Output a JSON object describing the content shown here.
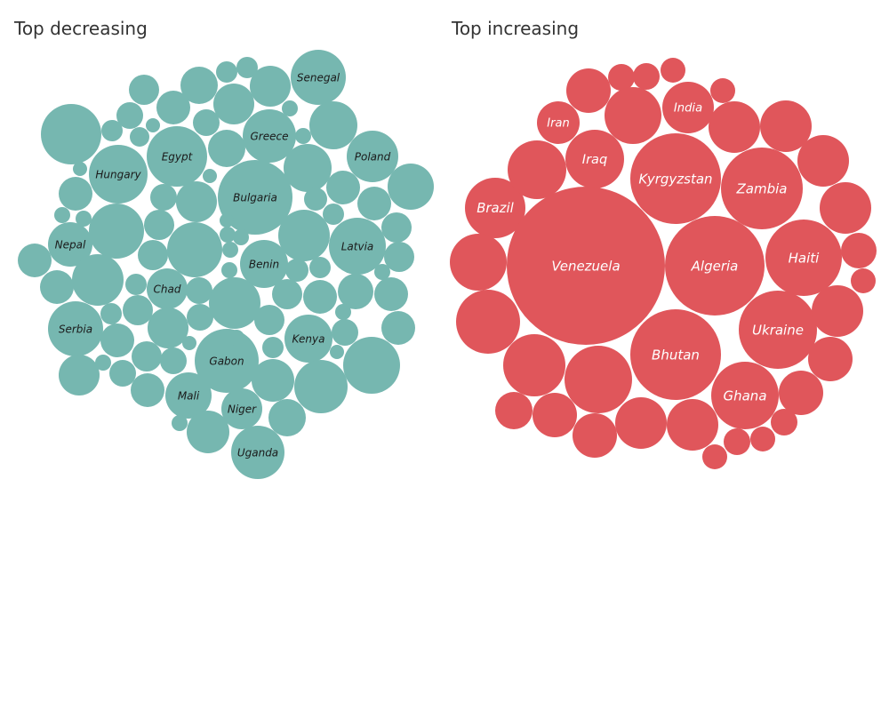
{
  "panels": {
    "left_title": "Top decreasing",
    "right_title": "Top increasing"
  },
  "colors": {
    "decreasing": "#76b7b0",
    "increasing": "#e0565b",
    "label_decreasing": "#1a1a1a",
    "label_increasing": "#ffffff"
  },
  "chart_data": [
    {
      "type": "packed-bubble",
      "title": "Top decreasing",
      "labeled_countries": [
        "Senegal",
        "Greece",
        "Egypt",
        "Poland",
        "Hungary",
        "Bulgaria",
        "Nepal",
        "Latvia",
        "Benin",
        "Chad",
        "Serbia",
        "Kenya",
        "Gabon",
        "Mali",
        "Niger",
        "Uganda"
      ]
    },
    {
      "type": "packed-bubble",
      "title": "Top increasing",
      "labeled_countries": [
        "Iran",
        "India",
        "Iraq",
        "Kyrgyzstan",
        "Zambia",
        "Brazil",
        "Venezuela",
        "Algeria",
        "Haiti",
        "Ukraine",
        "Bhutan",
        "Ghana"
      ]
    }
  ]
}
